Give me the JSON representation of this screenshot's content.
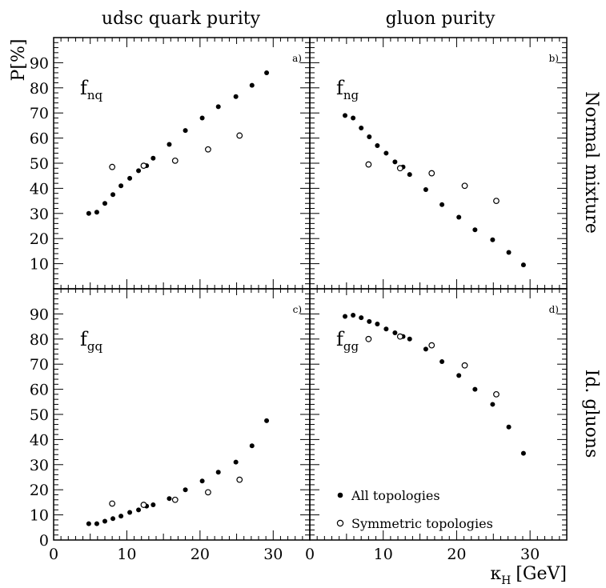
{
  "column_titles": [
    "udsc quark purity",
    "gluon purity"
  ],
  "row_titles": [
    "Normal mixture",
    "Id. gluons"
  ],
  "y_axis_label": "P[%]",
  "x_axis_label": {
    "main": "κ",
    "sub": "H",
    "unit": "[GeV]"
  },
  "legend": {
    "filled": "All topologies",
    "open": "Symmetric topologies",
    "placement": "bottom-left of panel d"
  },
  "colors": {
    "marker": "#000000",
    "background": "#ffffff"
  },
  "chart_data": [
    {
      "type": "scatter",
      "panel": "a)",
      "label": {
        "main": "f",
        "sub": "nq"
      },
      "xlim": [
        0,
        35
      ],
      "ylim": [
        0,
        100
      ],
      "xticks": [
        0,
        10,
        20,
        30
      ],
      "yticks": [
        10,
        20,
        30,
        40,
        50,
        60,
        70,
        80,
        90
      ],
      "series": [
        {
          "name": "All topologies",
          "marker": "filled",
          "x": [
            4.8,
            5.9,
            7.0,
            8.1,
            9.2,
            10.4,
            11.6,
            12.7,
            13.6,
            15.8,
            18.0,
            20.3,
            22.5,
            24.9,
            27.1,
            29.1
          ],
          "y": [
            30,
            30.5,
            34,
            37.5,
            41,
            44,
            47,
            49,
            52,
            57.5,
            63,
            68,
            72.5,
            76.5,
            81,
            86
          ]
        },
        {
          "name": "Symmetric topologies",
          "marker": "open",
          "x": [
            8.0,
            12.3,
            16.6,
            21.1,
            25.4
          ],
          "y": [
            48.5,
            49,
            51,
            55.5,
            61
          ]
        }
      ]
    },
    {
      "type": "scatter",
      "panel": "b)",
      "label": {
        "main": "f",
        "sub": "ng"
      },
      "xlim": [
        0,
        35
      ],
      "ylim": [
        0,
        100
      ],
      "xticks": [
        0,
        10,
        20,
        30
      ],
      "yticks": [
        10,
        20,
        30,
        40,
        50,
        60,
        70,
        80,
        90
      ],
      "series": [
        {
          "name": "All topologies",
          "marker": "filled",
          "x": [
            4.8,
            5.9,
            7.0,
            8.1,
            9.2,
            10.4,
            11.6,
            12.7,
            13.6,
            15.8,
            18.0,
            20.3,
            22.5,
            24.9,
            27.1,
            29.1
          ],
          "y": [
            69,
            68,
            64,
            60.5,
            57,
            54,
            50.5,
            48.5,
            45.5,
            39.5,
            33.5,
            28.5,
            23.5,
            19.5,
            14.5,
            9.5
          ]
        },
        {
          "name": "Symmetric topologies",
          "marker": "open",
          "x": [
            8.0,
            12.3,
            16.6,
            21.1,
            25.4
          ],
          "y": [
            49.5,
            48,
            46,
            41,
            35
          ]
        }
      ]
    },
    {
      "type": "scatter",
      "panel": "c)",
      "label": {
        "main": "f",
        "sub": "gq"
      },
      "xlim": [
        0,
        35
      ],
      "ylim": [
        0,
        100
      ],
      "xticks": [
        0,
        10,
        20,
        30
      ],
      "yticks": [
        0,
        10,
        20,
        30,
        40,
        50,
        60,
        70,
        80,
        90
      ],
      "series": [
        {
          "name": "All topologies",
          "marker": "filled",
          "x": [
            4.8,
            5.9,
            7.0,
            8.1,
            9.2,
            10.4,
            11.6,
            12.7,
            13.6,
            15.8,
            18.0,
            20.3,
            22.5,
            24.9,
            27.1,
            29.1
          ],
          "y": [
            6.5,
            6.5,
            7.5,
            8.5,
            9.5,
            11,
            12,
            13.5,
            14,
            16.5,
            20,
            23.5,
            27,
            31,
            37.5,
            47.5
          ]
        },
        {
          "name": "Symmetric topologies",
          "marker": "open",
          "x": [
            8.0,
            12.3,
            16.6,
            21.1,
            25.4
          ],
          "y": [
            14.5,
            14,
            16,
            19,
            24
          ]
        }
      ]
    },
    {
      "type": "scatter",
      "panel": "d)",
      "label": {
        "main": "f",
        "sub": "gg"
      },
      "xlim": [
        0,
        35
      ],
      "ylim": [
        0,
        100
      ],
      "xticks": [
        0,
        10,
        20,
        30
      ],
      "yticks": [
        0,
        10,
        20,
        30,
        40,
        50,
        60,
        70,
        80,
        90
      ],
      "series": [
        {
          "name": "All topologies",
          "marker": "filled",
          "x": [
            4.8,
            5.9,
            7.0,
            8.1,
            9.2,
            10.4,
            11.6,
            12.7,
            13.6,
            15.8,
            18.0,
            20.3,
            22.5,
            24.9,
            27.1,
            29.1
          ],
          "y": [
            89,
            89.5,
            88.5,
            87,
            86,
            84,
            82.5,
            81,
            80,
            76,
            71,
            65.5,
            60,
            54,
            45,
            34.5
          ]
        },
        {
          "name": "Symmetric topologies",
          "marker": "open",
          "x": [
            8.0,
            12.3,
            16.6,
            21.1,
            25.4
          ],
          "y": [
            80,
            81,
            77.5,
            69.5,
            58
          ]
        }
      ]
    }
  ]
}
